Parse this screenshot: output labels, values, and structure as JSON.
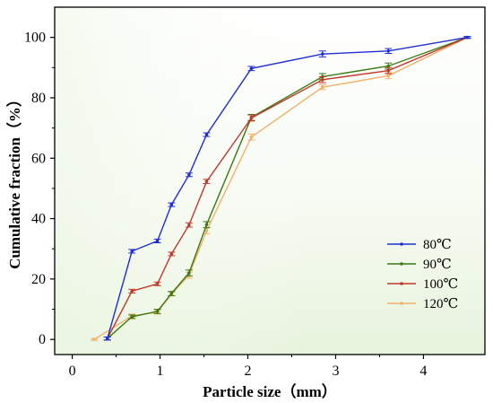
{
  "chart_data": {
    "type": "line",
    "title": "",
    "xlabel": "Particle size（mm）",
    "ylabel": "Cumulative fraction（%）",
    "xlim": [
      -0.2,
      4.7
    ],
    "ylim": [
      -5,
      110
    ],
    "xticks": [
      0,
      1,
      2,
      3,
      4
    ],
    "yticks": [
      0,
      20,
      40,
      60,
      80,
      100
    ],
    "grid": false,
    "legend_position": "lower-right",
    "background": "light green gradient",
    "series": [
      {
        "name": "80℃",
        "color": "#1f2fd1",
        "x": [
          0.4,
          0.68,
          0.97,
          1.13,
          1.33,
          1.53,
          2.04,
          2.85,
          3.6,
          4.5
        ],
        "y": [
          0.3,
          29.2,
          32.6,
          44.6,
          54.5,
          67.8,
          89.7,
          94.5,
          95.5,
          100
        ],
        "errors": [
          0.5,
          0.6,
          0.6,
          0.6,
          0.6,
          0.6,
          0.7,
          1.0,
          0.8,
          0.3
        ]
      },
      {
        "name": "90℃",
        "color": "#3c7a12",
        "x": [
          0.4,
          0.68,
          0.97,
          1.13,
          1.33,
          1.53,
          2.04,
          2.85,
          3.6,
          4.5
        ],
        "y": [
          0.3,
          7.5,
          9.3,
          15.2,
          22.0,
          38.0,
          73.5,
          87.0,
          90.5,
          100
        ],
        "errors": [
          0.5,
          0.6,
          0.7,
          0.7,
          1.0,
          1.0,
          1.0,
          1.0,
          1.0,
          0.3
        ]
      },
      {
        "name": "100℃",
        "color": "#c0392b",
        "x": [
          0.4,
          0.68,
          0.97,
          1.13,
          1.33,
          1.53,
          2.04,
          2.85,
          3.6,
          4.5
        ],
        "y": [
          0.3,
          16.0,
          18.4,
          28.3,
          37.9,
          52.3,
          73.3,
          86.0,
          89.0,
          100
        ],
        "errors": [
          0.5,
          0.6,
          0.6,
          0.6,
          0.7,
          0.7,
          1.0,
          1.0,
          1.0,
          0.3
        ]
      },
      {
        "name": "120℃",
        "color": "#f2b06a",
        "x": [
          0.25,
          0.68,
          0.97,
          1.13,
          1.33,
          1.53,
          2.04,
          2.85,
          3.6,
          4.5
        ],
        "y": [
          0.0,
          7.8,
          9.0,
          15.0,
          21.3,
          36.0,
          67.0,
          83.5,
          87.3,
          100
        ],
        "errors": [
          0.3,
          0.6,
          0.6,
          0.6,
          1.0,
          1.0,
          1.0,
          0.8,
          1.0,
          0.3
        ]
      }
    ]
  }
}
